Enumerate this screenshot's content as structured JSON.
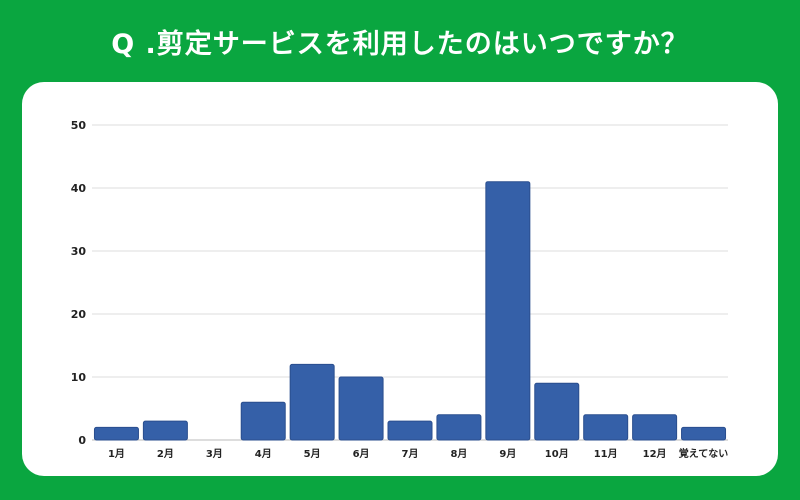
{
  "title": "Q .剪定サービスを利用したのはいつですか？",
  "colors": {
    "background": "#0aa640",
    "card": "#ffffff",
    "bar": "#3560a8",
    "grid": "#dddddd"
  },
  "chart_data": {
    "type": "bar",
    "title": "",
    "xlabel": "",
    "ylabel": "",
    "categories": [
      "1月",
      "2月",
      "3月",
      "4月",
      "5月",
      "6月",
      "7月",
      "8月",
      "9月",
      "10月",
      "11月",
      "12月",
      "覚えてない"
    ],
    "values": [
      2,
      3,
      0,
      6,
      12,
      10,
      3,
      4,
      41,
      9,
      4,
      4,
      2
    ],
    "ylim": [
      0,
      50
    ],
    "yticks": [
      0,
      10,
      20,
      30,
      40,
      50
    ],
    "grid": true,
    "legend": "none"
  }
}
